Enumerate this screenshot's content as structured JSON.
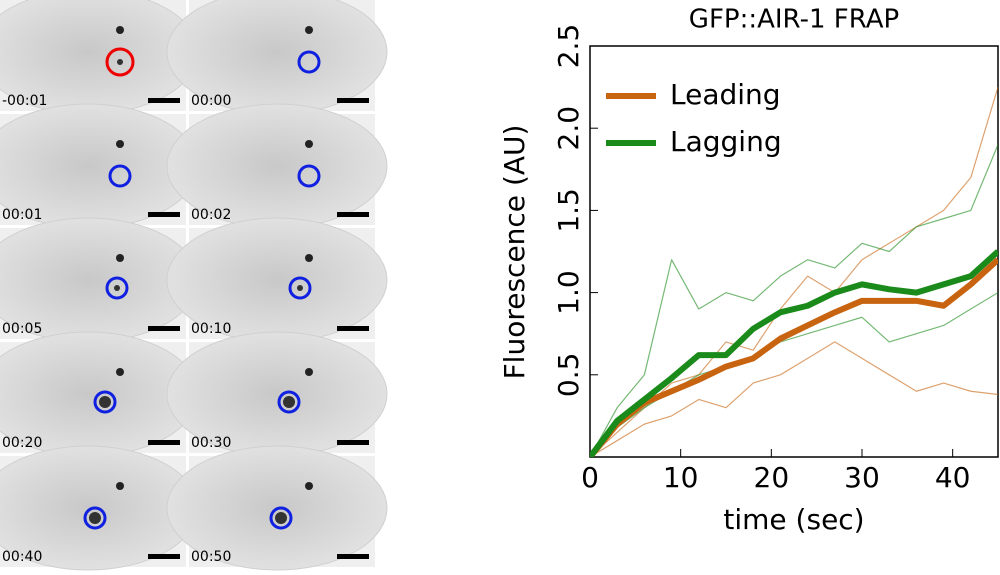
{
  "panels": {
    "labels": [
      "-00:01",
      "00:00",
      "00:01",
      "00:02",
      "00:05",
      "00:10",
      "00:20",
      "00:30",
      "00:40",
      "00:50"
    ]
  },
  "chart_data": {
    "type": "line",
    "title": "GFP::AIR-1 FRAP",
    "x_label": "time (sec)",
    "y_label": "Fluorescence (AU)",
    "x": [
      0,
      3,
      6,
      9,
      12,
      15,
      18,
      21,
      24,
      27,
      30,
      33,
      36,
      39,
      42,
      45
    ],
    "xlim": [
      0,
      45
    ],
    "xticks": [
      0,
      10,
      20,
      30,
      40
    ],
    "ylim": [
      0,
      2.5
    ],
    "yticks": [
      0.5,
      {
        "value": 1,
        "label": "1.0"
      },
      1.5,
      {
        "value": 2,
        "label": "2.0"
      },
      2.5
    ],
    "legend": "upper left",
    "series": [
      {
        "name": "Leading",
        "color": "#c8640f",
        "values": [
          0,
          0.2,
          0.33,
          0.4,
          0.47,
          0.55,
          0.6,
          0.72,
          0.8,
          0.88,
          0.95,
          0.95,
          0.95,
          0.92,
          1.05,
          1.2
        ],
        "traces": [
          [
            0,
            0.15,
            0.3,
            0.45,
            0.5,
            0.7,
            0.65,
            0.9,
            1.1,
            1.0,
            1.2,
            1.3,
            1.4,
            1.5,
            1.7,
            2.25
          ],
          [
            0,
            0.1,
            0.2,
            0.25,
            0.35,
            0.3,
            0.45,
            0.5,
            0.6,
            0.7,
            0.6,
            0.5,
            0.4,
            0.45,
            0.4,
            0.38
          ]
        ]
      },
      {
        "name": "Lagging",
        "color": "#1a8a1a",
        "values": [
          0,
          0.22,
          0.35,
          0.48,
          0.62,
          0.62,
          0.78,
          0.88,
          0.92,
          1.0,
          1.05,
          1.02,
          1.0,
          1.05,
          1.1,
          1.25
        ],
        "traces": [
          [
            0,
            0.3,
            0.5,
            1.2,
            0.9,
            1.0,
            0.95,
            1.1,
            1.2,
            1.15,
            1.3,
            1.25,
            1.4,
            1.45,
            1.5,
            1.9
          ],
          [
            0,
            0.18,
            0.3,
            0.4,
            0.5,
            0.55,
            0.6,
            0.7,
            0.75,
            0.8,
            0.85,
            0.7,
            0.75,
            0.8,
            0.9,
            1.0
          ]
        ]
      }
    ]
  }
}
